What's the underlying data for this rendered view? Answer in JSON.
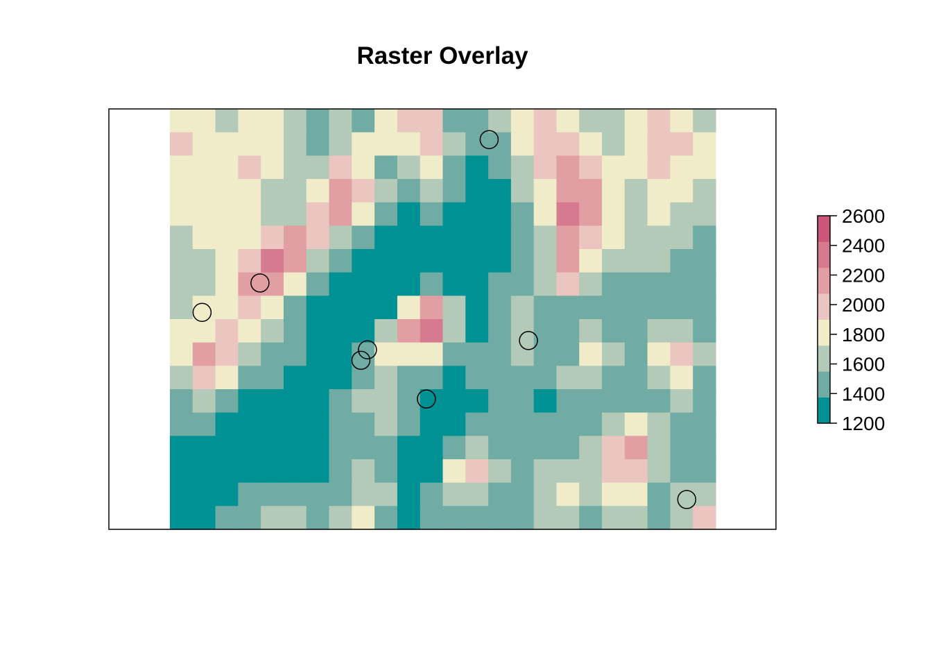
{
  "chart_data": {
    "type": "heatmap",
    "title": "Raster Overlay",
    "xlabel": "",
    "ylabel": "",
    "axes_visible": false,
    "raster_grid": {
      "cols": 24,
      "rows": 18,
      "values": [
        [
          1900,
          1900,
          1700,
          1800,
          1900,
          1700,
          1500,
          1600,
          1500,
          1800,
          2000,
          2100,
          1500,
          1400,
          1600,
          1900,
          2000,
          1800,
          1700,
          1700,
          1900,
          2000,
          1900,
          1700
        ],
        [
          2000,
          1900,
          1800,
          1900,
          1900,
          1700,
          1500,
          1700,
          1800,
          1800,
          1900,
          2100,
          1600,
          1400,
          1500,
          1900,
          2100,
          2000,
          1800,
          1700,
          1900,
          2100,
          2000,
          1800
        ],
        [
          1900,
          1900,
          1900,
          2000,
          1800,
          1600,
          1700,
          2100,
          1800,
          1500,
          1700,
          1900,
          1500,
          1300,
          1400,
          1700,
          2000,
          2200,
          2000,
          1800,
          1800,
          2000,
          1900,
          1800
        ],
        [
          1900,
          1800,
          1900,
          1900,
          1700,
          1600,
          1900,
          2300,
          2100,
          1600,
          1400,
          1600,
          1400,
          1300,
          1300,
          1600,
          1900,
          2300,
          2200,
          1900,
          1700,
          1900,
          1800,
          1700
        ],
        [
          1800,
          1800,
          1900,
          1900,
          1700,
          1700,
          2000,
          2200,
          1900,
          1500,
          1300,
          1400,
          1300,
          1200,
          1300,
          1500,
          1800,
          2400,
          2300,
          1900,
          1700,
          1800,
          1700,
          1600
        ],
        [
          1700,
          1800,
          1800,
          1800,
          2100,
          2300,
          2000,
          1700,
          1500,
          1300,
          1200,
          1300,
          1200,
          1200,
          1300,
          1400,
          1700,
          2300,
          2100,
          1800,
          1600,
          1700,
          1600,
          1500
        ],
        [
          1600,
          1700,
          1800,
          2000,
          2400,
          2200,
          1700,
          1400,
          1300,
          1200,
          1200,
          1300,
          1200,
          1200,
          1300,
          1400,
          1600,
          2200,
          1900,
          1700,
          1600,
          1600,
          1500,
          1400
        ],
        [
          1600,
          1700,
          1900,
          2200,
          2200,
          1800,
          1400,
          1300,
          1200,
          1200,
          1300,
          1500,
          1200,
          1200,
          1400,
          1500,
          1600,
          2000,
          1700,
          1500,
          1500,
          1500,
          1400,
          1400
        ],
        [
          1700,
          1800,
          1900,
          2000,
          1900,
          1500,
          1300,
          1200,
          1200,
          1300,
          1900,
          2200,
          1600,
          1300,
          1500,
          1600,
          1500,
          1500,
          1500,
          1400,
          1500,
          1500,
          1500,
          1400
        ],
        [
          1800,
          1800,
          2000,
          1800,
          1600,
          1400,
          1300,
          1200,
          1300,
          1700,
          2200,
          2400,
          1700,
          1300,
          1500,
          1700,
          1500,
          1400,
          1700,
          1500,
          1500,
          1700,
          1600,
          1500
        ],
        [
          1800,
          2200,
          2100,
          1600,
          1500,
          1400,
          1300,
          1200,
          1400,
          1800,
          1900,
          1800,
          1500,
          1400,
          1500,
          1600,
          1500,
          1500,
          1800,
          1600,
          1400,
          1900,
          2100,
          1600
        ],
        [
          1700,
          2000,
          1900,
          1500,
          1400,
          1300,
          1300,
          1300,
          1500,
          1600,
          1500,
          1400,
          1300,
          1400,
          1500,
          1500,
          1400,
          1600,
          1700,
          1500,
          1400,
          1700,
          1800,
          1500
        ],
        [
          1500,
          1600,
          1500,
          1300,
          1300,
          1300,
          1300,
          1400,
          1600,
          1700,
          1500,
          1300,
          1200,
          1300,
          1500,
          1400,
          1300,
          1500,
          1500,
          1400,
          1400,
          1500,
          1600,
          1500
        ],
        [
          1400,
          1400,
          1300,
          1200,
          1200,
          1200,
          1300,
          1400,
          1500,
          1600,
          1400,
          1300,
          1300,
          1400,
          1500,
          1400,
          1400,
          1400,
          1500,
          1700,
          1800,
          1600,
          1500,
          1500
        ],
        [
          1300,
          1300,
          1200,
          1200,
          1200,
          1200,
          1300,
          1400,
          1500,
          1500,
          1300,
          1300,
          1500,
          1700,
          1500,
          1400,
          1500,
          1500,
          1600,
          2100,
          2200,
          1700,
          1500,
          1400
        ],
        [
          1300,
          1200,
          1200,
          1300,
          1300,
          1300,
          1300,
          1400,
          1600,
          1500,
          1300,
          1300,
          1800,
          2000,
          1600,
          1400,
          1600,
          1700,
          1600,
          2000,
          2100,
          1600,
          1500,
          1500
        ],
        [
          1300,
          1300,
          1300,
          1400,
          1500,
          1500,
          1400,
          1500,
          1700,
          1600,
          1300,
          1400,
          1700,
          1700,
          1500,
          1500,
          1700,
          1900,
          1600,
          1800,
          1900,
          1500,
          1600,
          1700
        ],
        [
          1300,
          1300,
          1400,
          1500,
          1600,
          1600,
          1500,
          1600,
          1800,
          1500,
          1300,
          1400,
          1500,
          1500,
          1400,
          1400,
          1600,
          1700,
          1500,
          1600,
          1700,
          1500,
          1700,
          2100
        ]
      ]
    },
    "points": [
      {
        "x": 0.585,
        "y": 0.927
      },
      {
        "x": 0.165,
        "y": 0.586
      },
      {
        "x": 0.059,
        "y": 0.516
      },
      {
        "x": 0.362,
        "y": 0.427
      },
      {
        "x": 0.35,
        "y": 0.402
      },
      {
        "x": 0.657,
        "y": 0.449
      },
      {
        "x": 0.47,
        "y": 0.31
      },
      {
        "x": 0.947,
        "y": 0.071
      }
    ],
    "legend": {
      "placement": "right",
      "breaks": [
        1200,
        1400,
        1600,
        1800,
        2000,
        2200,
        2400,
        2600
      ],
      "tick_labels": [
        "2600",
        "2400",
        "2200",
        "2000",
        "1800",
        "1600",
        "1400",
        "1200"
      ],
      "colors": [
        "#009194",
        "#70aca4",
        "#b4cab8",
        "#f0ecca",
        "#ebc5bf",
        "#e29fa3",
        "#d67a90",
        "#ca5679"
      ]
    }
  }
}
